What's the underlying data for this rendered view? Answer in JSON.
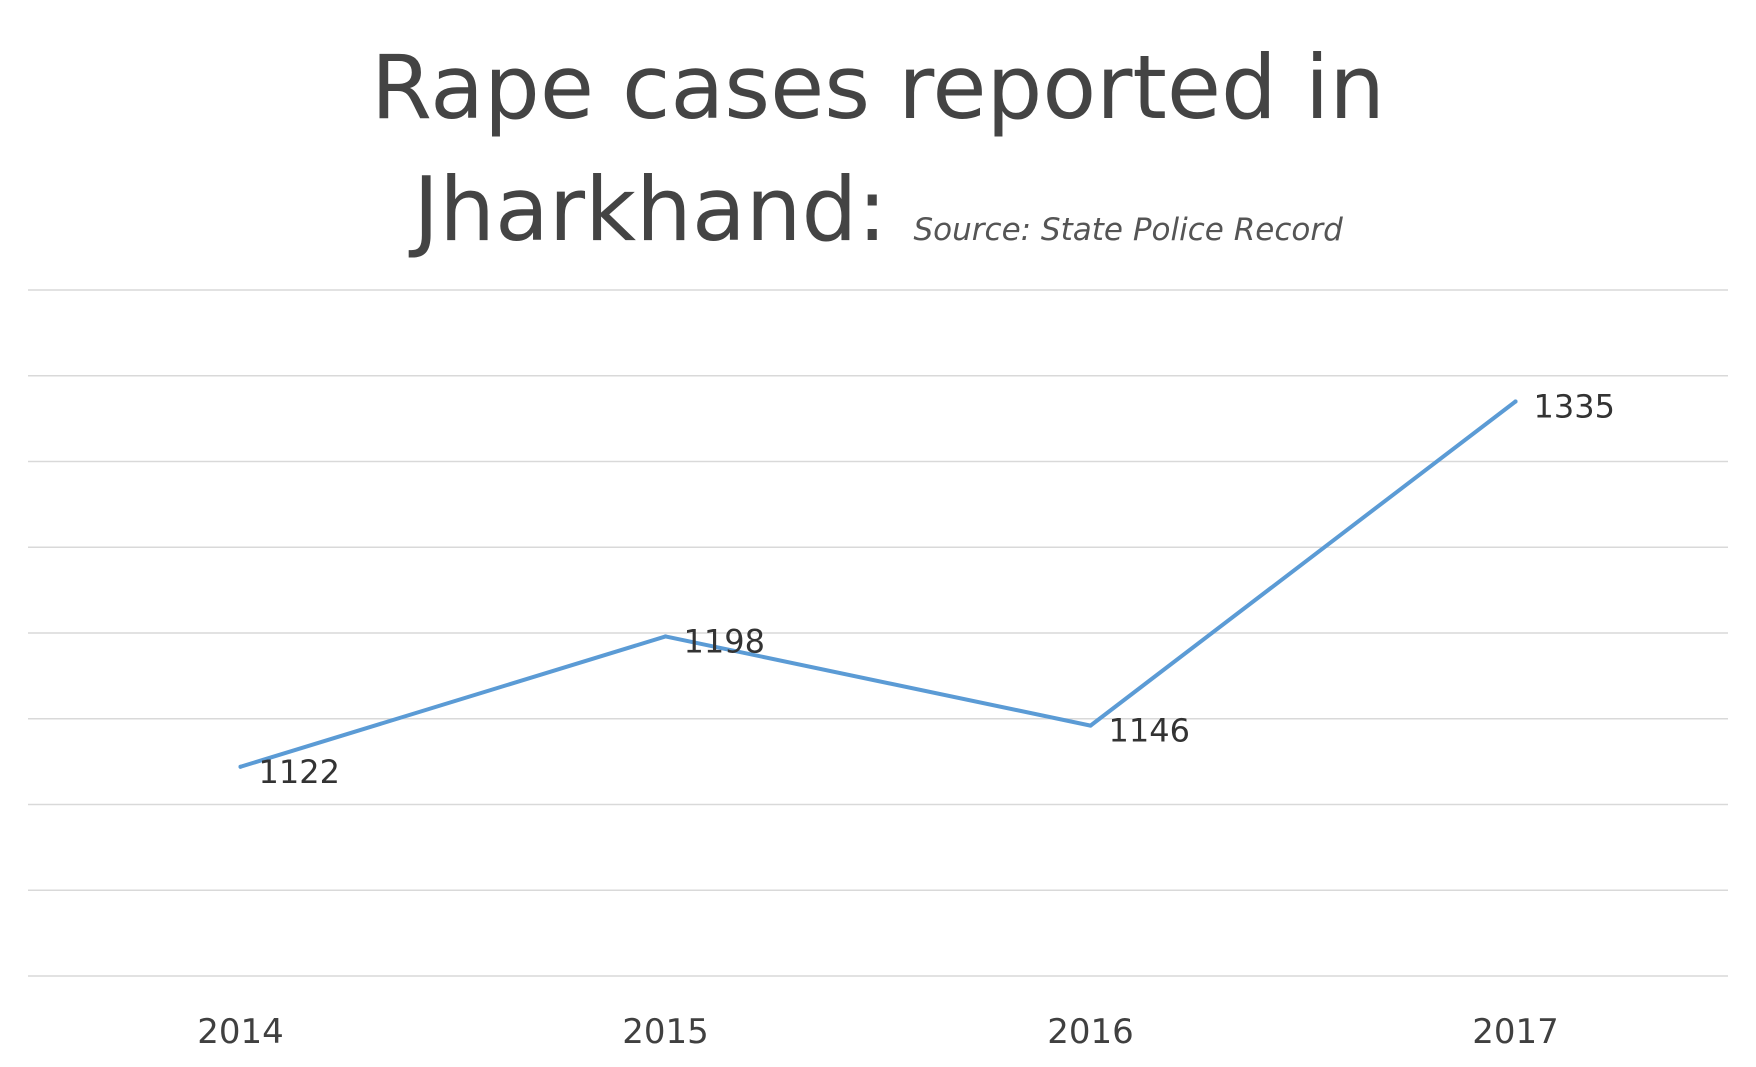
{
  "chart_data": {
    "type": "line",
    "title_line1": "Rape cases reported in",
    "title_line2": "Jharkhand:",
    "subtitle": "Source: State Police Record",
    "categories": [
      "2014",
      "2015",
      "2016",
      "2017"
    ],
    "series": [
      {
        "values": [
          1122,
          1198,
          1146,
          1335
        ]
      }
    ],
    "ylim": [
      1000,
      1400
    ],
    "grid": true,
    "y_tick_labels_shown": false,
    "legend": "none",
    "data_labels": true,
    "line_color": "#5b9bd5"
  }
}
